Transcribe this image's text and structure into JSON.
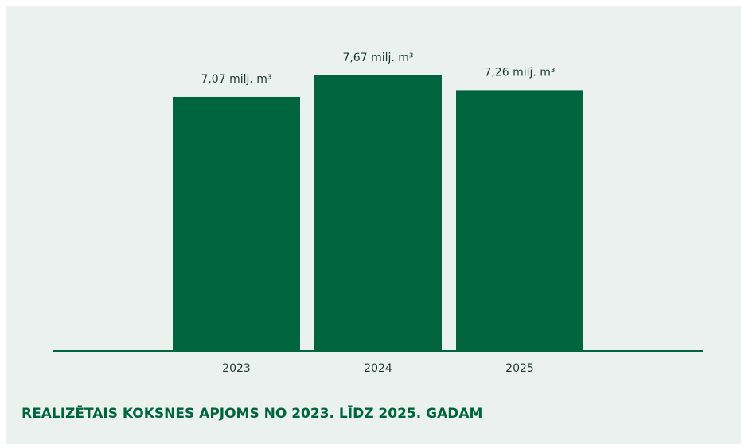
{
  "chart_data": {
    "type": "bar",
    "title": "REALIZĒTAIS KOKSNES APJOMS NO 2023. LĪDZ 2025. GADAM",
    "categories": [
      "2023",
      "2024",
      "2025"
    ],
    "values": [
      7.07,
      7.67,
      7.26
    ],
    "value_labels": [
      "7,07 milj. m³",
      "7,67 milj. m³",
      "7,26 milj. m³"
    ],
    "color": "#00643f",
    "ylim": [
      0,
      8
    ]
  }
}
